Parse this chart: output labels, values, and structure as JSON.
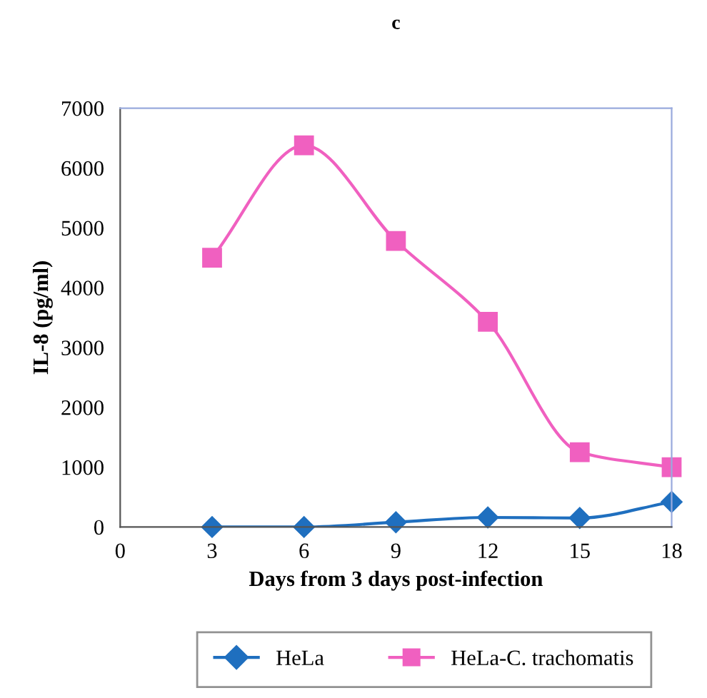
{
  "chart_data": {
    "type": "line",
    "title": "c",
    "xlabel": "Days from 3 days post-infection",
    "ylabel": "IL-8 (pg/ml)",
    "x": [
      3,
      6,
      9,
      12,
      15,
      18
    ],
    "series": [
      {
        "name": "HeLa",
        "color": "#1f6fbf",
        "marker": "diamond",
        "values": [
          0,
          0,
          80,
          160,
          150,
          420
        ]
      },
      {
        "name": "HeLa-C. trachomatis",
        "color": "#f060c0",
        "marker": "square",
        "values": [
          4500,
          6380,
          4780,
          3430,
          1250,
          1000
        ]
      }
    ],
    "xlim": [
      0,
      18
    ],
    "xticks": [
      0,
      3,
      6,
      9,
      12,
      15,
      18
    ],
    "ylim": [
      0,
      7000
    ],
    "yticks": [
      0,
      1000,
      2000,
      3000,
      4000,
      5000,
      6000,
      7000
    ],
    "grid": false,
    "legend": "bottom",
    "line_style": "solid"
  }
}
